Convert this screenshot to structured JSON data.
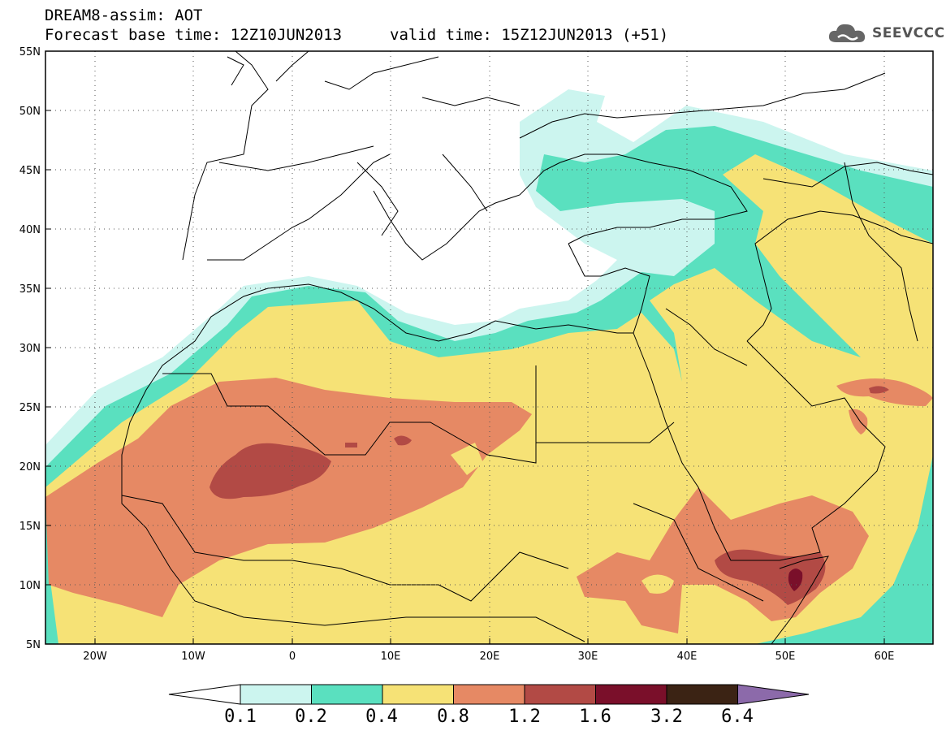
{
  "header": {
    "title_line1": "DREAM8-assim: AOT",
    "title_line2": "Forecast base time: 12Z10JUN2013",
    "valid_time": "valid time: 15Z12JUN2013 (+51)"
  },
  "logo": {
    "text": "SEEVCCC",
    "icon": "cloud-icon"
  },
  "map": {
    "lon_range": [
      -25,
      65
    ],
    "lat_range": [
      5,
      55
    ],
    "lat_labels": [
      "55N",
      "50N",
      "45N",
      "40N",
      "35N",
      "30N",
      "25N",
      "20N",
      "15N",
      "10N",
      "5N"
    ],
    "lon_labels": [
      "20W",
      "10W",
      "0",
      "10E",
      "20E",
      "30E",
      "40E",
      "50E",
      "60E"
    ]
  },
  "colorbar": {
    "labels": [
      "0.1",
      "0.2",
      "0.4",
      "0.8",
      "1.2",
      "1.6",
      "3.2",
      "6.4"
    ],
    "colors": [
      "#ffffff",
      "#ccf5ef",
      "#5ae0bf",
      "#f6e276",
      "#e68964",
      "#b24a45",
      "#7a0f2a",
      "#3b2314",
      "#8c6aaa"
    ]
  }
}
